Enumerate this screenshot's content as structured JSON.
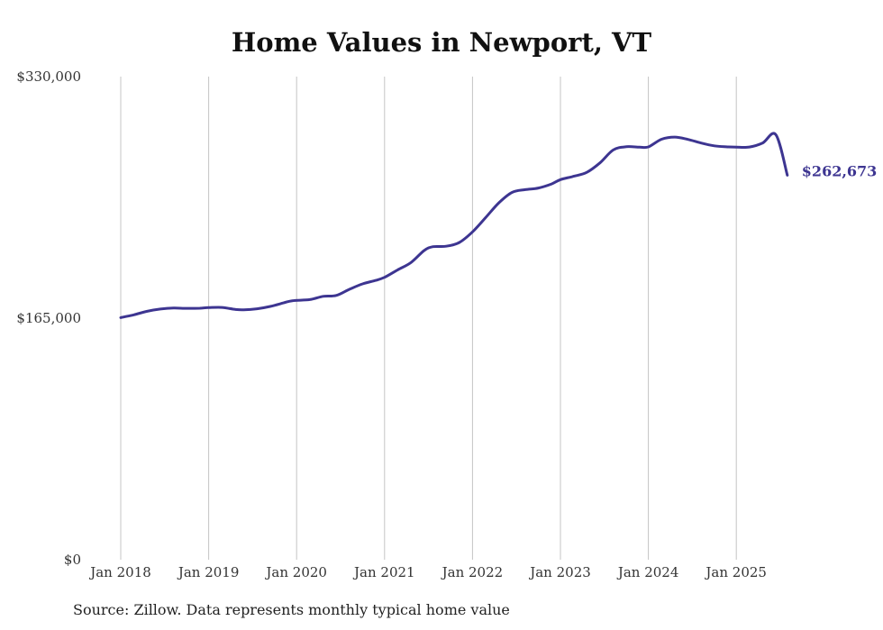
{
  "chart_data": {
    "type": "line",
    "title": "Home Values in Newport, VT",
    "xlabel": "",
    "ylabel": "",
    "ylim": [
      0,
      330000
    ],
    "y_ticks": [
      {
        "value": 0,
        "label": "$0"
      },
      {
        "value": 165000,
        "label": "$165,000"
      },
      {
        "value": 330000,
        "label": "$330,000"
      }
    ],
    "x_ticks": [
      {
        "value": 2018,
        "label": "Jan 2018"
      },
      {
        "value": 2019,
        "label": "Jan 2019"
      },
      {
        "value": 2020,
        "label": "Jan 2020"
      },
      {
        "value": 2021,
        "label": "Jan 2021"
      },
      {
        "value": 2022,
        "label": "Jan 2022"
      },
      {
        "value": 2023,
        "label": "Jan 2023"
      },
      {
        "value": 2024,
        "label": "Jan 2024"
      },
      {
        "value": 2025,
        "label": "Jan 2025"
      }
    ],
    "xlim": [
      2018,
      2025.6
    ],
    "grid": "vertical",
    "line_color": "#3d3591",
    "series": [
      {
        "name": "Typical home value",
        "x": [
          2018.0,
          2018.15,
          2018.3,
          2018.45,
          2018.6,
          2018.75,
          2018.9,
          2019.0,
          2019.15,
          2019.3,
          2019.4,
          2019.55,
          2019.7,
          2019.85,
          2019.95,
          2020.15,
          2020.3,
          2020.45,
          2020.6,
          2020.75,
          2020.9,
          2021.0,
          2021.15,
          2021.3,
          2021.45,
          2021.55,
          2021.7,
          2021.85,
          2022.0,
          2022.15,
          2022.3,
          2022.45,
          2022.6,
          2022.75,
          2022.9,
          2023.0,
          2023.15,
          2023.3,
          2023.45,
          2023.6,
          2023.75,
          2023.9,
          2024.0,
          2024.15,
          2024.3,
          2024.45,
          2024.6,
          2024.75,
          2024.9,
          2025.0,
          2025.15,
          2025.3,
          2025.45,
          2025.58
        ],
        "values": [
          165400,
          167300,
          169700,
          171200,
          171900,
          171700,
          171800,
          172200,
          172300,
          171000,
          170700,
          171400,
          173000,
          175400,
          176900,
          177700,
          179900,
          180500,
          184700,
          188400,
          190800,
          192900,
          198000,
          203000,
          211200,
          213800,
          214100,
          216700,
          223900,
          233700,
          243800,
          250900,
          252800,
          253900,
          256700,
          259600,
          261900,
          264600,
          271100,
          279900,
          282100,
          281800,
          282000,
          287200,
          288700,
          287100,
          284600,
          282700,
          282000,
          281800,
          281900,
          284700,
          290300,
          262673
        ]
      }
    ],
    "end_label": "$262,673"
  },
  "source_note": "Source: Zillow. Data represents monthly typical home value"
}
